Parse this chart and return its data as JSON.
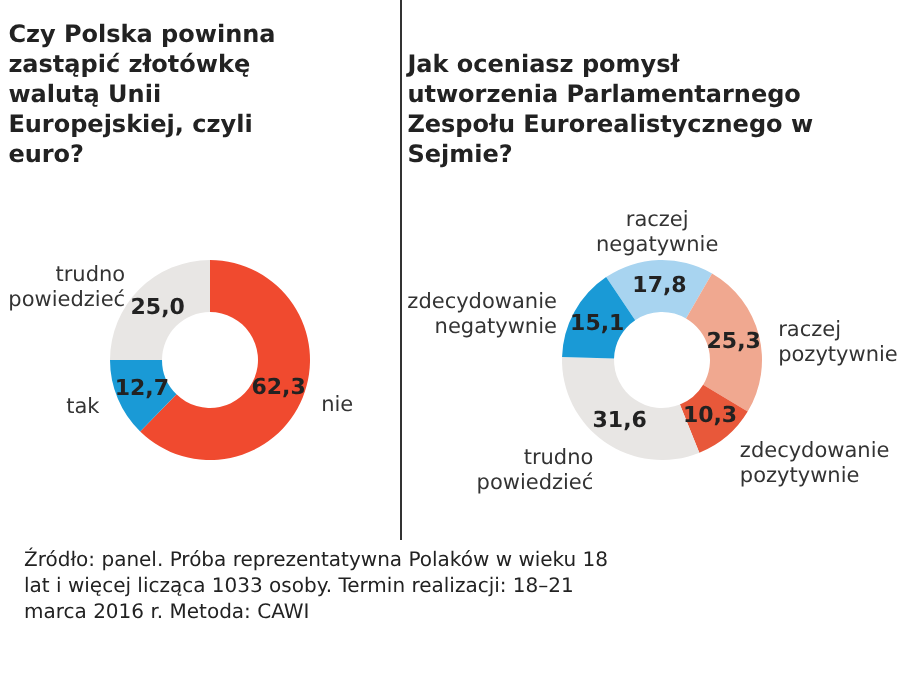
{
  "chart_data": [
    {
      "type": "donut",
      "title": "Czy Polska powinna zastąpić złotówkę walutą Unii Europejskiej, czyli euro?",
      "categories": [
        "nie",
        "tak",
        "trudno powiedzieć"
      ],
      "values": [
        62.3,
        12.7,
        25.0
      ],
      "value_labels": [
        "62,3",
        "12,7",
        "25,0"
      ],
      "colors": [
        "#f04a2f",
        "#1a9ad6",
        "#e8e6e4"
      ],
      "annotations": [
        "Źródło: panel. Próba reprezentatywna Polaków w wieku 18 lat i więcej licząca 1033 osoby. Termin realizacji: 18–21 marca 2016 r. Metoda: CAWI"
      ]
    },
    {
      "type": "donut",
      "title": "Jak oceniasz pomysł utworzenia Parlamentarnego Zespołu Eurorealistycznego w Sejmie?",
      "categories": [
        "raczej negatywnie",
        "raczej pozytywnie",
        "zdecydowanie pozytywnie",
        "trudno powiedzieć",
        "zdecydowanie negatywnie"
      ],
      "values": [
        17.8,
        25.3,
        10.3,
        31.6,
        15.1
      ],
      "value_labels": [
        "17,8",
        "25,3",
        "10,3",
        "31,6",
        "15,1"
      ],
      "colors": [
        "#a8d4f0",
        "#f0a890",
        "#e8583a",
        "#e8e6e4",
        "#1a9ad6"
      ]
    }
  ]
}
